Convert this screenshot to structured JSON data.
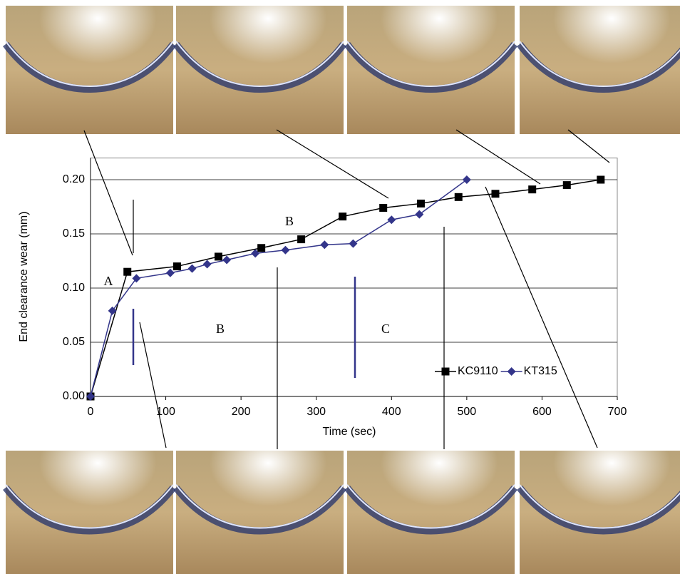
{
  "chart_data": {
    "type": "line",
    "x_label": "Time (sec)",
    "y_label": "End clearance wear (mm)",
    "xlim": [
      0,
      700
    ],
    "ylim": [
      0,
      0.22
    ],
    "xticks": [
      0,
      100,
      200,
      300,
      400,
      500,
      600,
      700
    ],
    "yticks": [
      {
        "value": 0,
        "label": "0.00"
      },
      {
        "value": 0.05,
        "label": "0.05"
      },
      {
        "value": 0.1,
        "label": "0.10"
      },
      {
        "value": 0.15,
        "label": "0.15"
      },
      {
        "value": 0.2,
        "label": "0.20"
      }
    ],
    "grid": true,
    "legend": "lower right",
    "annotations": [
      "A",
      "B",
      "B",
      "C"
    ],
    "series": [
      {
        "name": "KC9110",
        "color": "#000000",
        "marker": "square",
        "x": [
          0,
          49,
          115,
          170,
          227,
          280,
          335,
          389,
          439,
          489,
          538,
          587,
          633,
          678
        ],
        "values": [
          0,
          0.115,
          0.12,
          0.129,
          0.137,
          0.145,
          0.166,
          0.174,
          0.178,
          0.184,
          0.187,
          0.191,
          0.195,
          0.2
        ]
      },
      {
        "name": "KT315",
        "color": "#33358a",
        "marker": "diamond",
        "x": [
          0,
          29,
          61,
          106,
          135,
          155,
          181,
          219,
          259,
          311,
          349,
          400,
          437,
          500
        ],
        "values": [
          0,
          0.079,
          0.109,
          0.114,
          0.118,
          0.122,
          0.126,
          0.132,
          0.135,
          0.14,
          0.141,
          0.163,
          0.168,
          0.2
        ]
      }
    ]
  }
}
